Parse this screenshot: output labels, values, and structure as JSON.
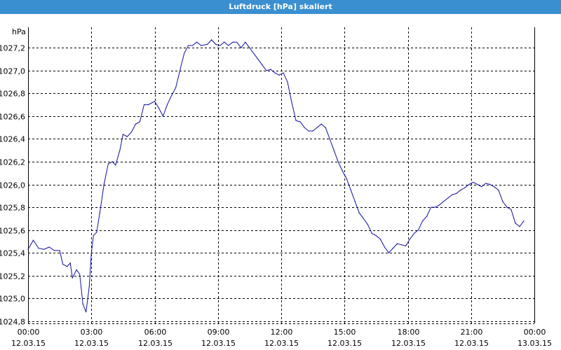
{
  "window": {
    "title": "Luftdruck [hPa] skaliert"
  },
  "colors": {
    "titlebar": "#3a8fd0",
    "line": "#1010a0",
    "grid": "#000000"
  },
  "chart_data": {
    "type": "line",
    "title": "Luftdruck [hPa] skaliert",
    "ylabel": "hPa",
    "xlabel": "",
    "ylim": [
      1024.78,
      1027.38
    ],
    "xlim": [
      0,
      24
    ],
    "grid": true,
    "yticks": [
      "1027,2",
      "1027,0",
      "1026,8",
      "1026,6",
      "1026,4",
      "1026,2",
      "1026,0",
      "1025,8",
      "1025,6",
      "1025,4",
      "1025,2",
      "1025,0",
      "1024,8"
    ],
    "ytick_values": [
      1027.2,
      1027.0,
      1026.8,
      1026.6,
      1026.4,
      1026.2,
      1026.0,
      1025.8,
      1025.6,
      1025.4,
      1025.2,
      1025.0,
      1024.8
    ],
    "xticks": [
      {
        "time": "00:00",
        "date": "12.03.15",
        "hour": 0
      },
      {
        "time": "03:00",
        "date": "12.03.15",
        "hour": 3
      },
      {
        "time": "06:00",
        "date": "12.03.15",
        "hour": 6
      },
      {
        "time": "09:00",
        "date": "12.03.15",
        "hour": 9
      },
      {
        "time": "12:00",
        "date": "12.03.15",
        "hour": 12
      },
      {
        "time": "15:00",
        "date": "12.03.15",
        "hour": 15
      },
      {
        "time": "18:00",
        "date": "12.03.15",
        "hour": 18
      },
      {
        "time": "21:00",
        "date": "12.03.15",
        "hour": 21
      },
      {
        "time": "00:00",
        "date": "13.03.15",
        "hour": 24
      }
    ],
    "series": [
      {
        "values": [
          [
            0.0,
            1025.43
          ],
          [
            0.25,
            1025.51
          ],
          [
            0.5,
            1025.44
          ],
          [
            0.75,
            1025.43
          ],
          [
            1.0,
            1025.45
          ],
          [
            1.25,
            1025.42
          ],
          [
            1.5,
            1025.42
          ],
          [
            1.65,
            1025.3
          ],
          [
            1.85,
            1025.28
          ],
          [
            2.0,
            1025.31
          ],
          [
            2.1,
            1025.18
          ],
          [
            2.3,
            1025.25
          ],
          [
            2.45,
            1025.21
          ],
          [
            2.6,
            1024.95
          ],
          [
            2.75,
            1024.88
          ],
          [
            2.9,
            1025.1
          ],
          [
            3.0,
            1025.4
          ],
          [
            3.1,
            1025.55
          ],
          [
            3.25,
            1025.58
          ],
          [
            3.4,
            1025.75
          ],
          [
            3.6,
            1026.0
          ],
          [
            3.8,
            1026.18
          ],
          [
            4.0,
            1026.2
          ],
          [
            4.15,
            1026.17
          ],
          [
            4.35,
            1026.3
          ],
          [
            4.5,
            1026.44
          ],
          [
            4.7,
            1026.42
          ],
          [
            4.9,
            1026.46
          ],
          [
            5.1,
            1026.53
          ],
          [
            5.3,
            1026.55
          ],
          [
            5.5,
            1026.7
          ],
          [
            5.7,
            1026.7
          ],
          [
            6.0,
            1026.73
          ],
          [
            6.2,
            1026.67
          ],
          [
            6.4,
            1026.6
          ],
          [
            6.6,
            1026.7
          ],
          [
            6.8,
            1026.78
          ],
          [
            7.0,
            1026.85
          ],
          [
            7.2,
            1027.0
          ],
          [
            7.4,
            1027.15
          ],
          [
            7.6,
            1027.22
          ],
          [
            7.8,
            1027.22
          ],
          [
            8.0,
            1027.25
          ],
          [
            8.2,
            1027.22
          ],
          [
            8.5,
            1027.23
          ],
          [
            8.7,
            1027.27
          ],
          [
            8.9,
            1027.23
          ],
          [
            9.1,
            1027.22
          ],
          [
            9.3,
            1027.25
          ],
          [
            9.5,
            1027.22
          ],
          [
            9.7,
            1027.25
          ],
          [
            9.9,
            1027.25
          ],
          [
            10.1,
            1027.2
          ],
          [
            10.3,
            1027.25
          ],
          [
            10.5,
            1027.2
          ],
          [
            10.7,
            1027.15
          ],
          [
            10.9,
            1027.1
          ],
          [
            11.1,
            1027.05
          ],
          [
            11.3,
            1027.0
          ],
          [
            11.5,
            1027.01
          ],
          [
            11.7,
            1026.98
          ],
          [
            11.9,
            1026.96
          ],
          [
            12.1,
            1026.98
          ],
          [
            12.3,
            1026.9
          ],
          [
            12.5,
            1026.72
          ],
          [
            12.7,
            1026.56
          ],
          [
            12.9,
            1026.55
          ],
          [
            13.1,
            1026.5
          ],
          [
            13.3,
            1026.47
          ],
          [
            13.5,
            1026.47
          ],
          [
            13.7,
            1026.5
          ],
          [
            13.9,
            1026.53
          ],
          [
            14.1,
            1026.5
          ],
          [
            14.3,
            1026.4
          ],
          [
            14.5,
            1026.3
          ],
          [
            14.7,
            1026.2
          ],
          [
            14.9,
            1026.12
          ],
          [
            15.1,
            1026.05
          ],
          [
            15.3,
            1025.95
          ],
          [
            15.5,
            1025.85
          ],
          [
            15.7,
            1025.75
          ],
          [
            15.9,
            1025.7
          ],
          [
            16.1,
            1025.65
          ],
          [
            16.3,
            1025.57
          ],
          [
            16.5,
            1025.55
          ],
          [
            16.7,
            1025.52
          ],
          [
            16.9,
            1025.45
          ],
          [
            17.1,
            1025.4
          ],
          [
            17.3,
            1025.44
          ],
          [
            17.5,
            1025.48
          ],
          [
            17.7,
            1025.47
          ],
          [
            17.9,
            1025.46
          ],
          [
            18.1,
            1025.52
          ],
          [
            18.3,
            1025.57
          ],
          [
            18.5,
            1025.6
          ],
          [
            18.7,
            1025.68
          ],
          [
            18.9,
            1025.72
          ],
          [
            19.1,
            1025.8
          ],
          [
            19.3,
            1025.8
          ],
          [
            19.5,
            1025.82
          ],
          [
            19.7,
            1025.85
          ],
          [
            19.9,
            1025.88
          ],
          [
            20.1,
            1025.91
          ],
          [
            20.3,
            1025.92
          ],
          [
            20.5,
            1025.95
          ],
          [
            20.7,
            1025.97
          ],
          [
            20.9,
            1026.0
          ],
          [
            21.1,
            1026.02
          ],
          [
            21.3,
            1026.0
          ],
          [
            21.5,
            1025.98
          ],
          [
            21.7,
            1026.01
          ],
          [
            21.9,
            1026.0
          ],
          [
            22.1,
            1025.98
          ],
          [
            22.3,
            1025.95
          ],
          [
            22.5,
            1025.85
          ],
          [
            22.7,
            1025.8
          ],
          [
            22.9,
            1025.78
          ],
          [
            23.1,
            1025.66
          ],
          [
            23.3,
            1025.63
          ],
          [
            23.5,
            1025.68
          ]
        ]
      }
    ]
  }
}
